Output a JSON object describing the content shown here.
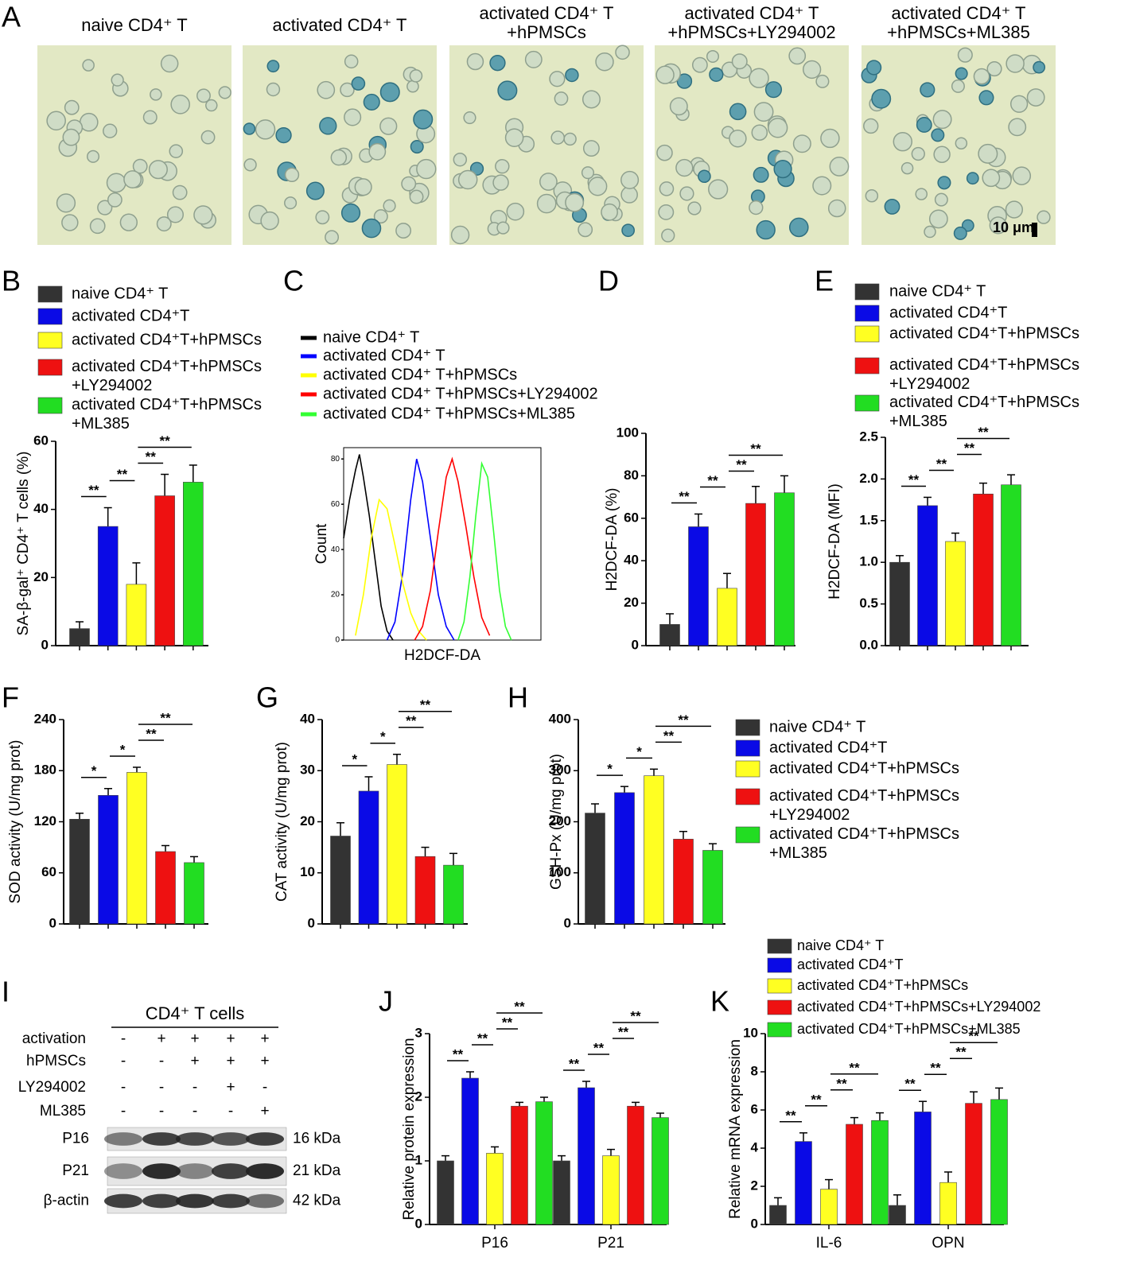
{
  "panel_a": {
    "label": "A",
    "titles": [
      [
        "naive CD4⁺ T"
      ],
      [
        "activated CD4⁺ T"
      ],
      [
        "activated CD4⁺ T",
        "+hPMSCs"
      ],
      [
        "activated CD4⁺ T",
        "+hPMSCs+LY294002"
      ],
      [
        "activated CD4⁺ T",
        "+hPMSCs+ML385"
      ]
    ],
    "scale_bar": "10 μm"
  },
  "chart_data": [
    {
      "label": "B",
      "type": "bar",
      "ylabel": "SA-β-gal⁺ CD4⁺ T cells (%)",
      "ylim": [
        0,
        60
      ],
      "yticks": [
        0,
        20,
        40,
        60
      ],
      "series": [
        {
          "name": "naive CD4⁺ T",
          "color": "#333333",
          "values": [
            5
          ],
          "errors": [
            2
          ]
        },
        {
          "name": "activated CD4⁺T",
          "color": "#0a0ae6",
          "values": [
            35
          ],
          "errors": [
            5.5
          ]
        },
        {
          "name": "activated CD4⁺T+hPMSCs",
          "color": "#ffff22",
          "values": [
            18
          ],
          "errors": [
            6.3
          ]
        },
        {
          "name": "activated CD4⁺T+hPMSCs\n+LY294002",
          "color": "#ee1111",
          "values": [
            44
          ],
          "errors": [
            6.3
          ]
        },
        {
          "name": "activated CD4⁺T+hPMSCs\n+ML385",
          "color": "#22dd22",
          "values": [
            48
          ],
          "errors": [
            5
          ]
        }
      ],
      "significance": [
        {
          "from": 0,
          "to": 1,
          "label": "**"
        },
        {
          "from": 1,
          "to": 2,
          "label": "**"
        },
        {
          "from": 2,
          "to": 3,
          "label": "**"
        },
        {
          "from": 2,
          "to": 4,
          "label": "**"
        }
      ]
    },
    {
      "label": "C",
      "type": "line",
      "ylabel": "Count",
      "xlabel": "H2DCF-DA",
      "xlim": [
        0,
        100
      ],
      "ylim": [
        0,
        85
      ],
      "yticks": [
        0,
        20,
        40,
        60,
        80
      ],
      "series": [
        {
          "name": "naive CD4⁺ T",
          "color": "#000000",
          "x": [
            0,
            3,
            6,
            8,
            10,
            13,
            16,
            19,
            22,
            25
          ],
          "values": [
            45,
            62,
            75,
            82,
            72,
            55,
            35,
            15,
            4,
            0
          ]
        },
        {
          "name": "activated CD4⁺ T",
          "color": "#0000ff",
          "x": [
            22,
            26,
            30,
            34,
            37,
            40,
            44,
            48,
            52,
            56
          ],
          "values": [
            0,
            8,
            30,
            62,
            80,
            70,
            45,
            20,
            6,
            0
          ]
        },
        {
          "name": "activated CD4⁺ T+hPMSCs",
          "color": "#ffff00",
          "x": [
            6,
            10,
            14,
            18,
            22,
            26,
            30,
            34,
            38,
            42
          ],
          "values": [
            2,
            20,
            45,
            62,
            58,
            42,
            25,
            12,
            4,
            0
          ]
        },
        {
          "name": "activated CD4⁺ T+hPMSCs+LY294002",
          "color": "#ff0000",
          "x": [
            36,
            40,
            44,
            48,
            52,
            55,
            58,
            62,
            66,
            70,
            74
          ],
          "values": [
            0,
            6,
            22,
            48,
            72,
            80,
            70,
            50,
            28,
            10,
            2
          ]
        },
        {
          "name": "activated CD4⁺ T+hPMSCs+ML385",
          "color": "#33ff33",
          "x": [
            58,
            61,
            64,
            67,
            70,
            73,
            76,
            79,
            82,
            85
          ],
          "values": [
            0,
            8,
            28,
            55,
            78,
            72,
            48,
            22,
            6,
            0
          ]
        }
      ]
    },
    {
      "label": "D",
      "type": "bar",
      "ylabel": "H2DCF-DA (%)",
      "ylim": [
        0,
        100
      ],
      "yticks": [
        0,
        20,
        40,
        60,
        80,
        100
      ],
      "series": [
        {
          "color": "#333333",
          "values": [
            10
          ],
          "errors": [
            5
          ]
        },
        {
          "color": "#0a0ae6",
          "values": [
            56
          ],
          "errors": [
            6
          ]
        },
        {
          "color": "#ffff22",
          "values": [
            27
          ],
          "errors": [
            7
          ]
        },
        {
          "color": "#ee1111",
          "values": [
            67
          ],
          "errors": [
            8
          ]
        },
        {
          "color": "#22dd22",
          "values": [
            72
          ],
          "errors": [
            8
          ]
        }
      ],
      "significance": [
        {
          "from": 0,
          "to": 1,
          "label": "**"
        },
        {
          "from": 1,
          "to": 2,
          "label": "**"
        },
        {
          "from": 2,
          "to": 3,
          "label": "**"
        },
        {
          "from": 2,
          "to": 4,
          "label": "**"
        }
      ]
    },
    {
      "label": "E",
      "type": "bar",
      "ylabel": "H2DCF-DA (MFI)",
      "ylim": [
        0,
        2.5
      ],
      "yticks": [
        {
          "value": 0,
          "label": "0.0"
        },
        0.5,
        {
          "value": 1,
          "label": "1.0"
        },
        1.5,
        {
          "value": 2,
          "label": "2.0"
        },
        2.5
      ],
      "series": [
        {
          "name": "naive CD4⁺ T",
          "color": "#333333",
          "values": [
            1.0
          ],
          "errors": [
            0.08
          ]
        },
        {
          "name": "activated CD4⁺T",
          "color": "#0a0ae6",
          "values": [
            1.68
          ],
          "errors": [
            0.1
          ]
        },
        {
          "name": "activated CD4⁺T+hPMSCs",
          "color": "#ffff22",
          "values": [
            1.25
          ],
          "errors": [
            0.1
          ]
        },
        {
          "name": "activated CD4⁺T+hPMSCs\n+LY294002",
          "color": "#ee1111",
          "values": [
            1.82
          ],
          "errors": [
            0.13
          ]
        },
        {
          "name": "activated CD4⁺T+hPMSCs\n+ML385",
          "color": "#22dd22",
          "values": [
            1.93
          ],
          "errors": [
            0.12
          ]
        }
      ],
      "significance": [
        {
          "from": 0,
          "to": 1,
          "label": "**"
        },
        {
          "from": 1,
          "to": 2,
          "label": "**"
        },
        {
          "from": 2,
          "to": 3,
          "label": "**"
        },
        {
          "from": 2,
          "to": 4,
          "label": "**"
        }
      ]
    },
    {
      "label": "F",
      "type": "bar",
      "ylabel": "SOD activity (U/mg prot)",
      "ylim": [
        0,
        240
      ],
      "yticks": [
        0,
        60,
        120,
        180,
        240
      ],
      "series": [
        {
          "color": "#333333",
          "values": [
            123
          ],
          "errors": [
            7
          ]
        },
        {
          "color": "#0a0ae6",
          "values": [
            151
          ],
          "errors": [
            8
          ]
        },
        {
          "color": "#ffff22",
          "values": [
            178
          ],
          "errors": [
            6
          ]
        },
        {
          "color": "#ee1111",
          "values": [
            85
          ],
          "errors": [
            7
          ]
        },
        {
          "color": "#22dd22",
          "values": [
            72
          ],
          "errors": [
            7
          ]
        }
      ],
      "significance": [
        {
          "from": 0,
          "to": 1,
          "label": "*"
        },
        {
          "from": 1,
          "to": 2,
          "label": "*"
        },
        {
          "from": 2,
          "to": 3,
          "label": "**"
        },
        {
          "from": 2,
          "to": 4,
          "label": "**"
        }
      ]
    },
    {
      "label": "G",
      "type": "bar",
      "ylabel": "CAT activity (U/mg prot)",
      "ylim": [
        0,
        40
      ],
      "yticks": [
        0,
        10,
        20,
        30,
        40
      ],
      "series": [
        {
          "color": "#333333",
          "values": [
            17.2
          ],
          "errors": [
            2.6
          ]
        },
        {
          "color": "#0a0ae6",
          "values": [
            26
          ],
          "errors": [
            2.8
          ]
        },
        {
          "color": "#ffff22",
          "values": [
            31.2
          ],
          "errors": [
            2
          ]
        },
        {
          "color": "#ee1111",
          "values": [
            13.2
          ],
          "errors": [
            1.8
          ]
        },
        {
          "color": "#22dd22",
          "values": [
            11.5
          ],
          "errors": [
            2.3
          ]
        }
      ],
      "significance": [
        {
          "from": 0,
          "to": 1,
          "label": "*"
        },
        {
          "from": 1,
          "to": 2,
          "label": "*"
        },
        {
          "from": 2,
          "to": 3,
          "label": "**"
        },
        {
          "from": 2,
          "to": 4,
          "label": "**"
        }
      ]
    },
    {
      "label": "H",
      "type": "bar",
      "ylabel": "GSH-Px (U/mg prot)",
      "ylim": [
        0,
        400
      ],
      "yticks": [
        0,
        100,
        200,
        300,
        400
      ],
      "series": [
        {
          "name": "naive CD4⁺ T",
          "color": "#333333",
          "values": [
            217
          ],
          "errors": [
            18
          ]
        },
        {
          "name": "activated CD4⁺T",
          "color": "#0a0ae6",
          "values": [
            257
          ],
          "errors": [
            12
          ]
        },
        {
          "name": "activated CD4⁺T+hPMSCs",
          "color": "#ffff22",
          "values": [
            290
          ],
          "errors": [
            13
          ]
        },
        {
          "name": "activated CD4⁺T+hPMSCs\n+LY294002",
          "color": "#ee1111",
          "values": [
            166
          ],
          "errors": [
            15
          ]
        },
        {
          "name": "activated CD4⁺T+hPMSCs\n+ML385",
          "color": "#22dd22",
          "values": [
            144
          ],
          "errors": [
            13
          ]
        }
      ],
      "significance": [
        {
          "from": 0,
          "to": 1,
          "label": "*"
        },
        {
          "from": 1,
          "to": 2,
          "label": "*"
        },
        {
          "from": 2,
          "to": 3,
          "label": "**"
        },
        {
          "from": 2,
          "to": 4,
          "label": "**"
        }
      ]
    },
    {
      "label": "J",
      "type": "bar",
      "ylabel": "Relative protein expression",
      "categories": [
        "P16",
        "P21"
      ],
      "ylim": [
        0,
        3
      ],
      "yticks": [
        0,
        1,
        2,
        3
      ],
      "series": [
        {
          "color": "#333333",
          "values": [
            1.0,
            1.0
          ],
          "errors": [
            0.08,
            0.08
          ]
        },
        {
          "color": "#0a0ae6",
          "values": [
            2.3,
            2.15
          ],
          "errors": [
            0.1,
            0.1
          ]
        },
        {
          "color": "#ffff22",
          "values": [
            1.12,
            1.08
          ],
          "errors": [
            0.1,
            0.1
          ]
        },
        {
          "color": "#ee1111",
          "values": [
            1.86,
            1.86
          ],
          "errors": [
            0.06,
            0.06
          ]
        },
        {
          "color": "#22dd22",
          "values": [
            1.93,
            1.68
          ],
          "errors": [
            0.07,
            0.07
          ]
        }
      ],
      "significance": [
        {
          "group": 0,
          "from": 0,
          "to": 1,
          "label": "**"
        },
        {
          "group": 0,
          "from": 1,
          "to": 2,
          "label": "**"
        },
        {
          "group": 0,
          "from": 2,
          "to": 3,
          "label": "**"
        },
        {
          "group": 0,
          "from": 2,
          "to": 4,
          "label": "**"
        },
        {
          "group": 1,
          "from": 0,
          "to": 1,
          "label": "**"
        },
        {
          "group": 1,
          "from": 1,
          "to": 2,
          "label": "**"
        },
        {
          "group": 1,
          "from": 2,
          "to": 3,
          "label": "**"
        },
        {
          "group": 1,
          "from": 2,
          "to": 4,
          "label": "**"
        }
      ]
    },
    {
      "label": "K",
      "type": "bar",
      "ylabel": "Relative mRNA expression",
      "categories": [
        "IL-6",
        "OPN"
      ],
      "ylim": [
        0,
        10
      ],
      "yticks": [
        0,
        2,
        4,
        6,
        8,
        10
      ],
      "series": [
        {
          "name": "naive CD4⁺ T",
          "color": "#333333",
          "values": [
            1,
            1
          ],
          "errors": [
            0.4,
            0.55
          ]
        },
        {
          "name": "activated CD4⁺T",
          "color": "#0a0ae6",
          "values": [
            4.35,
            5.9
          ],
          "errors": [
            0.45,
            0.55
          ]
        },
        {
          "name": "activated CD4⁺T+hPMSCs",
          "color": "#ffff22",
          "values": [
            1.85,
            2.2
          ],
          "errors": [
            0.5,
            0.55
          ]
        },
        {
          "name": "activated CD4⁺T+hPMSCs+LY294002",
          "color": "#ee1111",
          "values": [
            5.25,
            6.35
          ],
          "errors": [
            0.35,
            0.6
          ]
        },
        {
          "name": "activated CD4⁺T+hPMSCs+ML385",
          "color": "#22dd22",
          "values": [
            5.45,
            6.55
          ],
          "errors": [
            0.4,
            0.6
          ]
        }
      ],
      "significance": [
        {
          "group": 0,
          "from": 0,
          "to": 1,
          "label": "**"
        },
        {
          "group": 0,
          "from": 1,
          "to": 2,
          "label": "**"
        },
        {
          "group": 0,
          "from": 2,
          "to": 3,
          "label": "**"
        },
        {
          "group": 0,
          "from": 2,
          "to": 4,
          "label": "**"
        },
        {
          "group": 1,
          "from": 0,
          "to": 1,
          "label": "**"
        },
        {
          "group": 1,
          "from": 1,
          "to": 2,
          "label": "**"
        },
        {
          "group": 1,
          "from": 2,
          "to": 3,
          "label": "**"
        },
        {
          "group": 1,
          "from": 2,
          "to": 4,
          "label": "**"
        }
      ]
    }
  ],
  "blot": {
    "label": "I",
    "title": "CD4⁺ T cells",
    "conditions": [
      {
        "name": "activation",
        "signs": [
          "-",
          "+",
          "+",
          "+",
          "+"
        ]
      },
      {
        "name": "hPMSCs",
        "signs": [
          "-",
          "-",
          "+",
          "+",
          "+"
        ]
      },
      {
        "name": "LY294002",
        "signs": [
          "-",
          "-",
          "-",
          "+",
          "-"
        ]
      },
      {
        "name": "ML385",
        "signs": [
          "-",
          "-",
          "-",
          "-",
          "+"
        ]
      }
    ],
    "bands": [
      {
        "name": "P16",
        "size": "16 kDa"
      },
      {
        "name": "P21",
        "size": "21 kDa"
      },
      {
        "name": "β-actin",
        "size": "42 kDa"
      }
    ]
  }
}
